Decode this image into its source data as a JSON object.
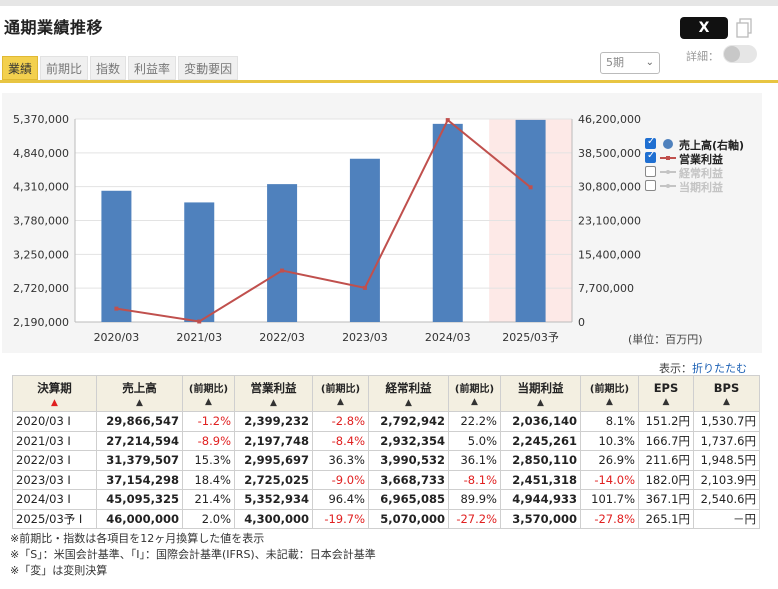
{
  "title": "通期業績推移",
  "share_label": "X",
  "detail_label": "詳細：",
  "tabs": [
    {
      "label": "業績",
      "active": true
    },
    {
      "label": "前期比",
      "active": false
    },
    {
      "label": "指数",
      "active": false
    },
    {
      "label": "利益率",
      "active": false
    },
    {
      "label": "変動要因",
      "active": false
    }
  ],
  "period_select": "5期",
  "unit_label": "(単位：百万円)",
  "view_label": "表示：",
  "fold_link": "折りたたむ",
  "legend": [
    {
      "label": "売上高(右軸)",
      "checked": true,
      "color": "#4f81bd",
      "shape": "circle"
    },
    {
      "label": "営業利益",
      "checked": true,
      "color": "#c0504d",
      "shape": "line"
    },
    {
      "label": "経常利益",
      "checked": false,
      "color": "#c4c4c4",
      "shape": "line"
    },
    {
      "label": "当期利益",
      "checked": false,
      "color": "#c4c4c4",
      "shape": "line"
    }
  ],
  "chart_data": {
    "type": "bar+line",
    "categories": [
      "2020/03",
      "2021/03",
      "2022/03",
      "2023/03",
      "2024/03",
      "2025/03予"
    ],
    "left_axis": {
      "ticks": [
        2190000,
        2720000,
        3250000,
        3780000,
        4310000,
        4840000,
        5370000
      ],
      "tick_labels": [
        "2,190,000",
        "2,720,000",
        "3,250,000",
        "3,780,000",
        "4,310,000",
        "4,840,000",
        "5,370,000"
      ],
      "range": [
        2190000,
        5370000
      ]
    },
    "right_axis": {
      "ticks": [
        0,
        7700000,
        15400000,
        23100000,
        30800000,
        38500000,
        46200000
      ],
      "tick_labels": [
        "0",
        "7,700,000",
        "15,400,000",
        "23,100,000",
        "30,800,000",
        "38,500,000",
        "46,200,000"
      ],
      "range": [
        0,
        46200000
      ]
    },
    "series": [
      {
        "name": "売上高(右軸)",
        "type": "bar",
        "axis": "right",
        "color": "#4f81bd",
        "values": [
          29866547,
          27214594,
          31379507,
          37154298,
          45095325,
          46000000
        ]
      },
      {
        "name": "営業利益",
        "type": "line",
        "axis": "left",
        "color": "#c0504d",
        "values": [
          2399232,
          2197748,
          2995697,
          2725025,
          5352934,
          4300000
        ]
      }
    ],
    "forecast_index": 5,
    "forecast_shade": "#fde9e7"
  },
  "table": {
    "headers": [
      {
        "label": "決算期",
        "sort": "▲",
        "sort_color": "red"
      },
      {
        "label": "売上高",
        "sort": "▲"
      },
      {
        "label": "(前期比)",
        "sort": "▲",
        "small": true
      },
      {
        "label": "営業利益",
        "sort": "▲"
      },
      {
        "label": "(前期比)",
        "sort": "▲",
        "small": true
      },
      {
        "label": "経常利益",
        "sort": "▲"
      },
      {
        "label": "(前期比)",
        "sort": "▲",
        "small": true
      },
      {
        "label": "当期利益",
        "sort": "▲"
      },
      {
        "label": "(前期比)",
        "sort": "▲",
        "small": true
      },
      {
        "label": "EPS",
        "sort": "▲"
      },
      {
        "label": "BPS",
        "sort": "▲"
      }
    ],
    "rows": [
      {
        "period": "2020/03 I",
        "sales": "29,866,547",
        "sales_yoy": "-1.2%",
        "op": "2,399,232",
        "op_yoy": "-2.8%",
        "ord": "2,792,942",
        "ord_yoy": "22.2%",
        "net": "2,036,140",
        "net_yoy": "8.1%",
        "eps": "151.2円",
        "bps": "1,530.7円"
      },
      {
        "period": "2021/03 I",
        "sales": "27,214,594",
        "sales_yoy": "-8.9%",
        "op": "2,197,748",
        "op_yoy": "-8.4%",
        "ord": "2,932,354",
        "ord_yoy": "5.0%",
        "net": "2,245,261",
        "net_yoy": "10.3%",
        "eps": "166.7円",
        "bps": "1,737.6円"
      },
      {
        "period": "2022/03 I",
        "sales": "31,379,507",
        "sales_yoy": "15.3%",
        "op": "2,995,697",
        "op_yoy": "36.3%",
        "ord": "3,990,532",
        "ord_yoy": "36.1%",
        "net": "2,850,110",
        "net_yoy": "26.9%",
        "eps": "211.6円",
        "bps": "1,948.5円"
      },
      {
        "period": "2023/03 I",
        "sales": "37,154,298",
        "sales_yoy": "18.4%",
        "op": "2,725,025",
        "op_yoy": "-9.0%",
        "ord": "3,668,733",
        "ord_yoy": "-8.1%",
        "net": "2,451,318",
        "net_yoy": "-14.0%",
        "eps": "182.0円",
        "bps": "2,103.9円"
      },
      {
        "period": "2024/03 I",
        "sales": "45,095,325",
        "sales_yoy": "21.4%",
        "op": "5,352,934",
        "op_yoy": "96.4%",
        "ord": "6,965,085",
        "ord_yoy": "89.9%",
        "net": "4,944,933",
        "net_yoy": "101.7%",
        "eps": "367.1円",
        "bps": "2,540.6円"
      },
      {
        "period": "2025/03予 I",
        "sales": "46,000,000",
        "sales_yoy": "2.0%",
        "op": "4,300,000",
        "op_yoy": "-19.7%",
        "ord": "5,070,000",
        "ord_yoy": "-27.2%",
        "net": "3,570,000",
        "net_yoy": "-27.8%",
        "eps": "265.1円",
        "bps": "－円"
      }
    ]
  },
  "notes": [
    "※前期比・指数は各項目を12ヶ月換算した値を表示",
    "※「S」：米国会計基準、「I」：国際会計基準(IFRS)、未記載：日本会計基準",
    "※「変」は変則決算"
  ]
}
